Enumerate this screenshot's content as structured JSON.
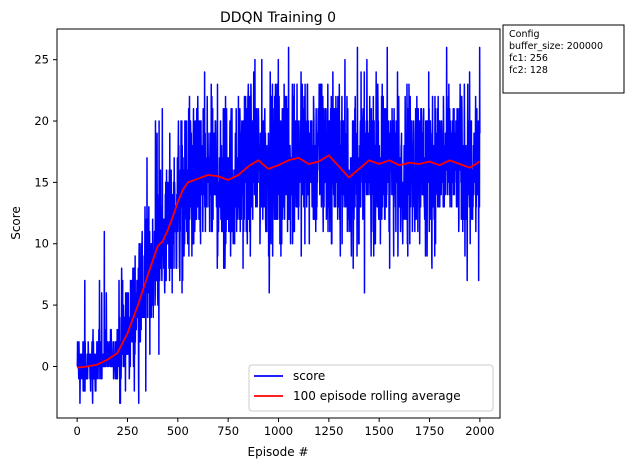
{
  "chart_data": {
    "type": "line",
    "title": "DDQN Training 0",
    "xlabel": "Episode #",
    "ylabel": "Score",
    "xlim": [
      -100,
      2100
    ],
    "ylim": [
      -4.2,
      27.5
    ],
    "x_ticks": [
      0,
      250,
      500,
      750,
      1000,
      1250,
      1500,
      1750,
      2000
    ],
    "y_ticks": [
      0,
      5,
      10,
      15,
      20,
      25
    ],
    "grid": false,
    "legend_position": "lower-right",
    "series": [
      {
        "name": "score",
        "color": "#0000ff",
        "episodes": [
          0,
          2000
        ],
        "mean_profile": [
          [
            0,
            0.0
          ],
          [
            100,
            0.3
          ],
          [
            150,
            0.6
          ],
          [
            200,
            1.2
          ],
          [
            250,
            2.8
          ],
          [
            300,
            5.0
          ],
          [
            350,
            7.5
          ],
          [
            400,
            9.8
          ],
          [
            450,
            11.2
          ],
          [
            500,
            13.5
          ],
          [
            550,
            15.0
          ],
          [
            650,
            15.5
          ],
          [
            750,
            15.3
          ],
          [
            850,
            16.2
          ],
          [
            900,
            16.8
          ],
          [
            1000,
            16.3
          ],
          [
            1100,
            17.0
          ],
          [
            1250,
            17.1
          ],
          [
            1350,
            15.5
          ],
          [
            1450,
            16.6
          ],
          [
            1600,
            16.5
          ],
          [
            1800,
            16.6
          ],
          [
            1950,
            16.3
          ],
          [
            2000,
            16.6
          ]
        ],
        "min": -3,
        "max": 26
      },
      {
        "name": "100 episode rolling average",
        "color": "#ff0000",
        "points": [
          [
            0,
            -0.1
          ],
          [
            50,
            0.0
          ],
          [
            100,
            0.15
          ],
          [
            150,
            0.55
          ],
          [
            200,
            1.1
          ],
          [
            250,
            2.7
          ],
          [
            300,
            4.9
          ],
          [
            350,
            7.4
          ],
          [
            375,
            8.6
          ],
          [
            400,
            9.8
          ],
          [
            425,
            10.2
          ],
          [
            450,
            11.1
          ],
          [
            475,
            12.2
          ],
          [
            500,
            13.4
          ],
          [
            525,
            14.4
          ],
          [
            550,
            15.0
          ],
          [
            600,
            15.3
          ],
          [
            650,
            15.6
          ],
          [
            700,
            15.5
          ],
          [
            750,
            15.2
          ],
          [
            800,
            15.6
          ],
          [
            850,
            16.3
          ],
          [
            900,
            16.8
          ],
          [
            950,
            16.1
          ],
          [
            1000,
            16.4
          ],
          [
            1050,
            16.8
          ],
          [
            1100,
            17.0
          ],
          [
            1150,
            16.5
          ],
          [
            1200,
            16.7
          ],
          [
            1250,
            17.2
          ],
          [
            1300,
            16.3
          ],
          [
            1350,
            15.4
          ],
          [
            1400,
            16.1
          ],
          [
            1450,
            16.8
          ],
          [
            1500,
            16.5
          ],
          [
            1550,
            16.8
          ],
          [
            1600,
            16.4
          ],
          [
            1650,
            16.6
          ],
          [
            1700,
            16.5
          ],
          [
            1750,
            16.7
          ],
          [
            1800,
            16.4
          ],
          [
            1850,
            16.8
          ],
          [
            1900,
            16.5
          ],
          [
            1950,
            16.2
          ],
          [
            2000,
            16.7
          ]
        ]
      }
    ]
  },
  "config_box": {
    "lines": [
      "Config",
      "buffer_size: 200000",
      "fc1: 256",
      "fc2: 128"
    ]
  }
}
